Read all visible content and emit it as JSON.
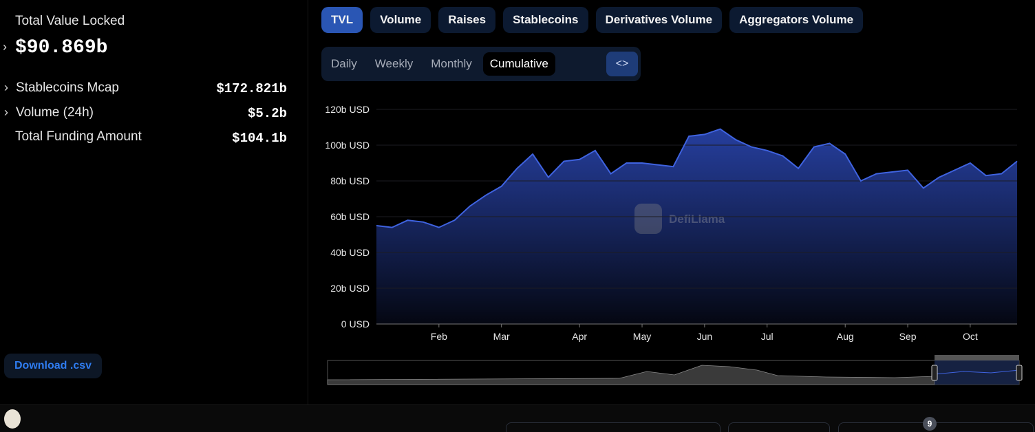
{
  "sidebar": {
    "tvl_label": "Total Value Locked",
    "tvl_value": "$90.869b",
    "rows": [
      {
        "label": "Stablecoins Mcap",
        "value": "$172.821b"
      },
      {
        "label": "Volume (24h)",
        "value": "$5.2b"
      },
      {
        "label": "Total Funding Amount",
        "value": "$104.1b"
      }
    ],
    "download": "Download .csv"
  },
  "tabs": [
    "TVL",
    "Volume",
    "Raises",
    "Stablecoins",
    "Derivatives Volume",
    "Aggregators Volume"
  ],
  "periods": [
    "Daily",
    "Weekly",
    "Monthly",
    "Cumulative"
  ],
  "badge": 9,
  "chart_data": {
    "type": "area",
    "watermark": "DefiLlama",
    "color": "#3f63e0",
    "categories": [
      null,
      null,
      null,
      null,
      "Feb",
      null,
      null,
      null,
      "Mar",
      null,
      null,
      null,
      null,
      "Apr",
      null,
      null,
      null,
      "May",
      null,
      null,
      null,
      "Jun",
      null,
      null,
      null,
      "Jul",
      null,
      null,
      null,
      null,
      "Aug",
      null,
      null,
      null,
      "Sep",
      null,
      null,
      null,
      "Oct",
      null,
      null,
      null
    ],
    "values": [
      55,
      54,
      58,
      57,
      54,
      58,
      66,
      72,
      77,
      87,
      95,
      82,
      91,
      92,
      97,
      84,
      90,
      90,
      89,
      88,
      105,
      106,
      109,
      103,
      99,
      97,
      94,
      87,
      99,
      101,
      95,
      80,
      84,
      85,
      86,
      76,
      82,
      86,
      90,
      83,
      84,
      91
    ],
    "ylim": [
      0,
      120
    ],
    "yticks": [
      {
        "value": 0,
        "label": "0 USD"
      },
      {
        "value": 20,
        "label": "20b USD"
      },
      {
        "value": 40,
        "label": "40b USD"
      },
      {
        "value": 60,
        "label": "60b USD"
      },
      {
        "value": 80,
        "label": "80b USD"
      },
      {
        "value": 100,
        "label": "100b USD"
      },
      {
        "value": 120,
        "label": "120b USD"
      }
    ],
    "grid": true
  }
}
